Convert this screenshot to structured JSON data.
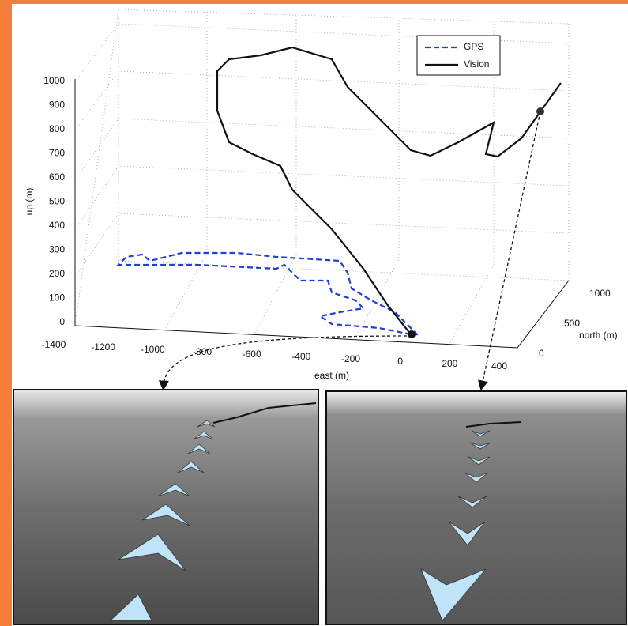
{
  "plot": {
    "axis_labels": {
      "up": "up (m)",
      "east": "east (m)",
      "north": "north (m)"
    },
    "up_ticks": [
      "0",
      "100",
      "200",
      "300",
      "400",
      "500",
      "600",
      "700",
      "800",
      "900",
      "1000"
    ],
    "east_ticks": [
      "-1400",
      "-1200",
      "-1000",
      "-800",
      "-600",
      "-400",
      "-200",
      "0",
      "200",
      "400"
    ],
    "north_ticks": [
      "0",
      "500",
      "1000"
    ],
    "legend": [
      "GPS",
      "Vision"
    ]
  }
}
